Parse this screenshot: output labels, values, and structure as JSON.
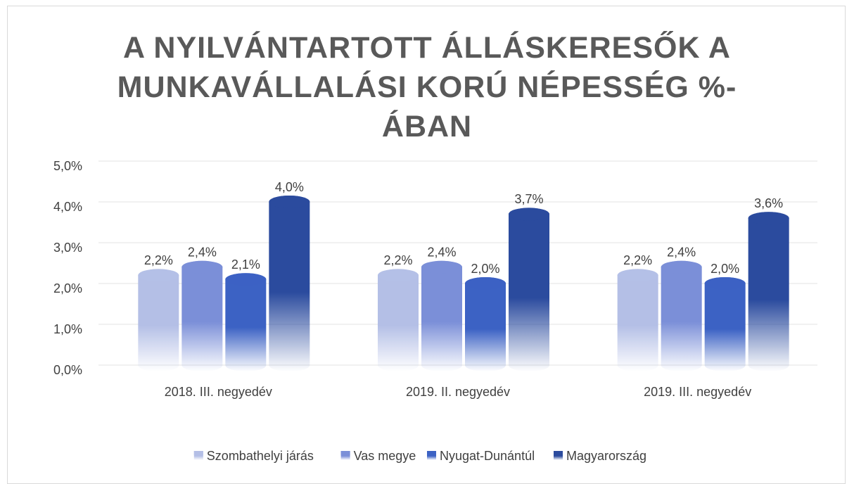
{
  "chart_data": {
    "type": "bar",
    "title": "A NYILVÁNTARTOTT ÁLLÁSKERESŐK A MUNKAVÁLLALÁSI KORÚ NÉPESSÉG %-ÁBAN",
    "categories": [
      "2018. III. negyedév",
      "2019. II. negyedév",
      "2019. III. negyedév"
    ],
    "series": [
      {
        "name": "Szombathelyi járás",
        "color": "#b4bfe6",
        "values": [
          2.2,
          2.2,
          2.2
        ],
        "value_labels": [
          "2,2%",
          "2,2%",
          "2,2%"
        ]
      },
      {
        "name": "Vas megye",
        "color": "#7b8fd8",
        "values": [
          2.4,
          2.4,
          2.4
        ],
        "value_labels": [
          "2,4%",
          "2,4%",
          "2,4%"
        ]
      },
      {
        "name": "Nyugat-Dunántúl",
        "color": "#3c62c4",
        "values": [
          2.1,
          2.0,
          2.0
        ],
        "value_labels": [
          "2,1%",
          "2,0%",
          "2,0%"
        ]
      },
      {
        "name": "Magyarország",
        "color": "#2b4b9e",
        "values": [
          4.0,
          3.7,
          3.6
        ],
        "value_labels": [
          "4,0%",
          "3,7%",
          "3,6%"
        ]
      }
    ],
    "ylim": [
      0,
      5
    ],
    "yticks": [
      {
        "value": 0,
        "label": "0,0%"
      },
      {
        "value": 1,
        "label": "1,0%"
      },
      {
        "value": 2,
        "label": "2,0%"
      },
      {
        "value": 3,
        "label": "3,0%"
      },
      {
        "value": 4,
        "label": "4,0%"
      },
      {
        "value": 5,
        "label": "5,0%"
      }
    ],
    "grid": true,
    "legend": "bottom"
  }
}
